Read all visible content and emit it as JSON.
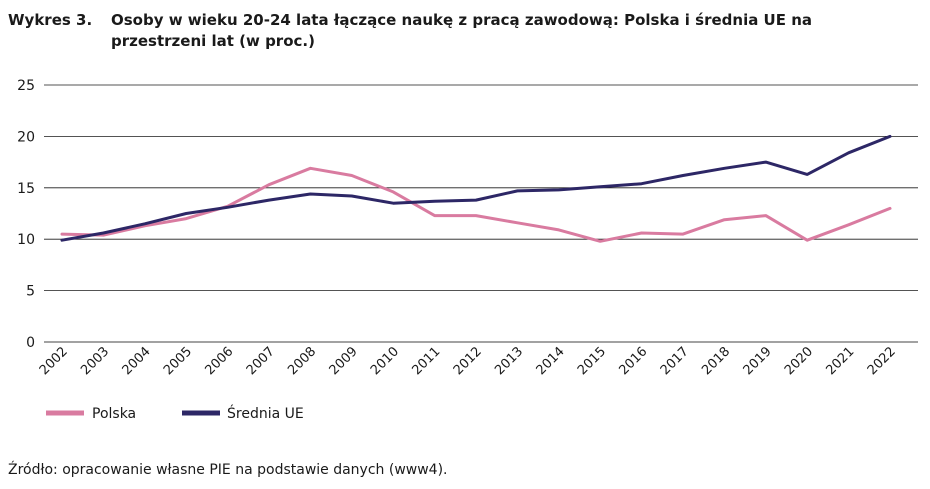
{
  "title": {
    "number": "Wykres 3.",
    "text": "Osoby w wieku 20-24 lata łączące naukę z pracą zawodową: Polska i średnia UE na przestrzeni lat (w proc.)"
  },
  "source": "Źródło: opracowanie własne PIE na podstawie danych (www4).",
  "chart_data": {
    "type": "line",
    "title": "Osoby w wieku 20-24 lata łączące naukę z pracą zawodową: Polska i średnia UE na przestrzeni lat (w proc.)",
    "xlabel": "",
    "ylabel": "",
    "x": [
      "2002",
      "2003",
      "2004",
      "2005",
      "2006",
      "2007",
      "2008",
      "2009",
      "2010",
      "2011",
      "2012",
      "2013",
      "2014",
      "2015",
      "2016",
      "2017",
      "2018",
      "2019",
      "2020",
      "2021",
      "2022"
    ],
    "ylim": [
      0,
      25
    ],
    "yticks": [
      0,
      5,
      10,
      15,
      20,
      25
    ],
    "grid": "horizontal",
    "legend": "bottom-left",
    "series": [
      {
        "name": "Polska",
        "color": "#d97ba0",
        "values": [
          10.5,
          10.4,
          11.3,
          12.0,
          13.2,
          15.3,
          16.9,
          16.2,
          14.6,
          12.3,
          12.3,
          11.6,
          10.9,
          9.8,
          10.6,
          10.5,
          11.9,
          12.3,
          9.9,
          11.4,
          13.0
        ]
      },
      {
        "name": "Średnia UE",
        "color": "#2d2766",
        "values": [
          9.9,
          10.6,
          11.5,
          12.5,
          13.1,
          13.8,
          14.4,
          14.2,
          13.5,
          13.7,
          13.8,
          14.7,
          14.8,
          15.1,
          15.4,
          16.2,
          16.9,
          17.5,
          16.3,
          18.4,
          20.0
        ]
      }
    ]
  }
}
